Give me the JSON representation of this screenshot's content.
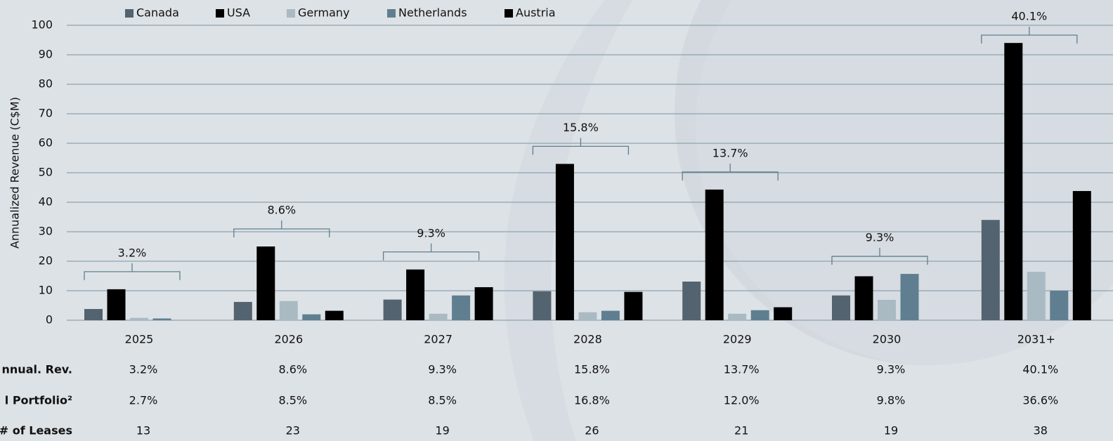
{
  "chart_data": {
    "type": "bar",
    "y_label": "Annualized Revenue (C$M)",
    "categories": [
      "2025",
      "2026",
      "2027",
      "2028",
      "2029",
      "2030",
      "2031+"
    ],
    "series": [
      {
        "name": "Canada",
        "color": "#53636f",
        "values": [
          3.8,
          6.2,
          7.0,
          9.8,
          13.1,
          8.4,
          34.0
        ]
      },
      {
        "name": "USA",
        "color": "#000000",
        "values": [
          10.5,
          25.0,
          17.2,
          53.0,
          44.3,
          14.9,
          94.0
        ]
      },
      {
        "name": "Germany",
        "color": "#a9bac3",
        "values": [
          0.8,
          6.5,
          2.2,
          2.7,
          2.2,
          6.9,
          16.4
        ]
      },
      {
        "name": "Netherlands",
        "color": "#5f7f91",
        "values": [
          0.6,
          2.0,
          8.4,
          3.2,
          3.4,
          15.7,
          10.0
        ]
      },
      {
        "name": "Austria",
        "color": "#000000",
        "values": [
          0,
          3.2,
          11.2,
          9.6,
          4.4,
          0,
          43.8
        ]
      }
    ],
    "bracket_labels": [
      "3.2%",
      "8.6%",
      "9.3%",
      "15.8%",
      "13.7%",
      "9.3%",
      "40.1%"
    ],
    "ylim": [
      0,
      100
    ],
    "yticks": [
      0,
      10,
      20,
      30,
      40,
      50,
      60,
      70,
      80,
      90,
      100
    ],
    "grid": true
  },
  "table": {
    "rows": [
      {
        "label": "nnual. Rev.",
        "values": [
          "3.2%",
          "8.6%",
          "9.3%",
          "15.8%",
          "13.7%",
          "9.3%",
          "40.1%"
        ]
      },
      {
        "label": "l Portfolio²",
        "values": [
          "2.7%",
          "8.5%",
          "8.5%",
          "16.8%",
          "12.0%",
          "9.8%",
          "36.6%"
        ]
      },
      {
        "label": "# of Leases",
        "values": [
          "13",
          "23",
          "19",
          "26",
          "21",
          "19",
          "38"
        ]
      }
    ]
  }
}
